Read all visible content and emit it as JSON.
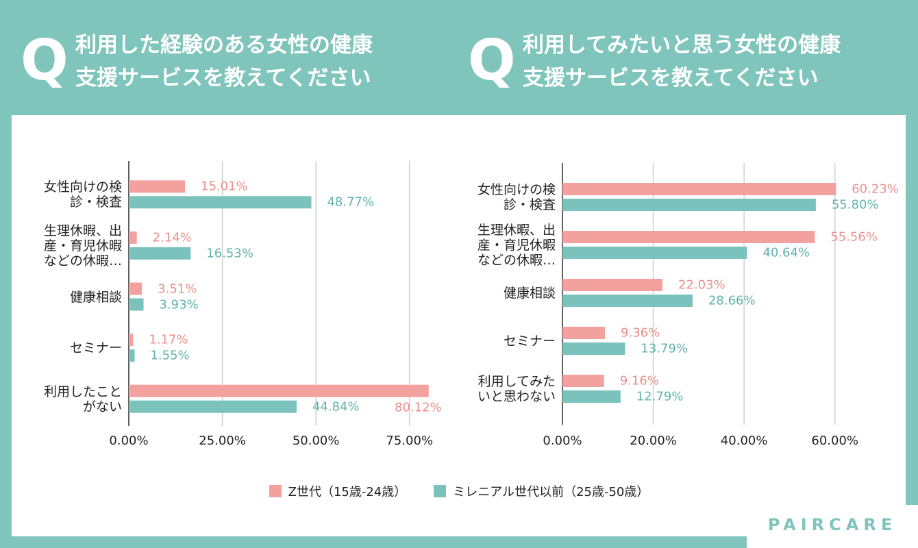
{
  "brand": "PAIRCARE",
  "chart_data": [
    {
      "type": "bar",
      "orientation": "horizontal",
      "title_marker": "Q",
      "title": "利用した経験のある女性の健康\n支援サービスを教えてください",
      "categories": [
        "女性向けの検\n診・検査",
        "生理休暇、出\n産・育児休暇\nなどの休暇…",
        "健康相談",
        "セミナー",
        "利用したこと\nがない"
      ],
      "series": [
        {
          "name": "Z世代（15歳-24歳）",
          "color": "#f2a19f",
          "label_color": "#ec8f8c",
          "values": [
            15.01,
            2.14,
            3.51,
            1.17,
            80.12
          ],
          "value_labels": [
            "15.01%",
            "2.14%",
            "3.51%",
            "1.17%",
            "80.12%"
          ]
        },
        {
          "name": "ミレニアル世代以前（25歳-50歳）",
          "color": "#7bc1bc",
          "label_color": "#5fb3ad",
          "values": [
            48.77,
            16.53,
            3.93,
            1.55,
            44.84
          ],
          "value_labels": [
            "48.77%",
            "16.53%",
            "3.93%",
            "1.55%",
            "44.84%"
          ]
        }
      ],
      "xlim": [
        0,
        82
      ],
      "xticks": [
        {
          "value": 0,
          "label": "0.00%"
        },
        {
          "value": 25,
          "label": "25.00%"
        },
        {
          "value": 50,
          "label": "50.00%"
        },
        {
          "value": 75,
          "label": "75.00%"
        }
      ],
      "grid": true
    },
    {
      "type": "bar",
      "orientation": "horizontal",
      "title_marker": "Q",
      "title": "利用してみたいと思う女性の健康\n支援サービスを教えてください",
      "categories": [
        "女性向けの検\n診・検査",
        "生理休暇、出\n産・育児休暇\nなどの休暇…",
        "健康相談",
        "セミナー",
        "利用してみた\nいと思わない"
      ],
      "series": [
        {
          "color": "#f2a19f",
          "label_color": "#ec8f8c",
          "values": [
            60.23,
            55.56,
            22.03,
            9.36,
            9.16
          ],
          "value_labels": [
            "60.23%",
            "55.56%",
            "22.03%",
            "9.36%",
            "9.16%"
          ]
        },
        {
          "color": "#7bc1bc",
          "label_color": "#5fb3ad",
          "values": [
            55.8,
            40.64,
            28.66,
            13.79,
            12.79
          ],
          "value_labels": [
            "55.80%",
            "40.64%",
            "28.66%",
            "13.79%",
            "12.79%"
          ]
        }
      ],
      "xlim": [
        0,
        70
      ],
      "xticks": [
        {
          "value": 0,
          "label": "0.00%"
        },
        {
          "value": 20,
          "label": "20.00%"
        },
        {
          "value": 40,
          "label": "40.00%"
        },
        {
          "value": 60,
          "label": "60.00%"
        }
      ],
      "grid": true
    }
  ]
}
